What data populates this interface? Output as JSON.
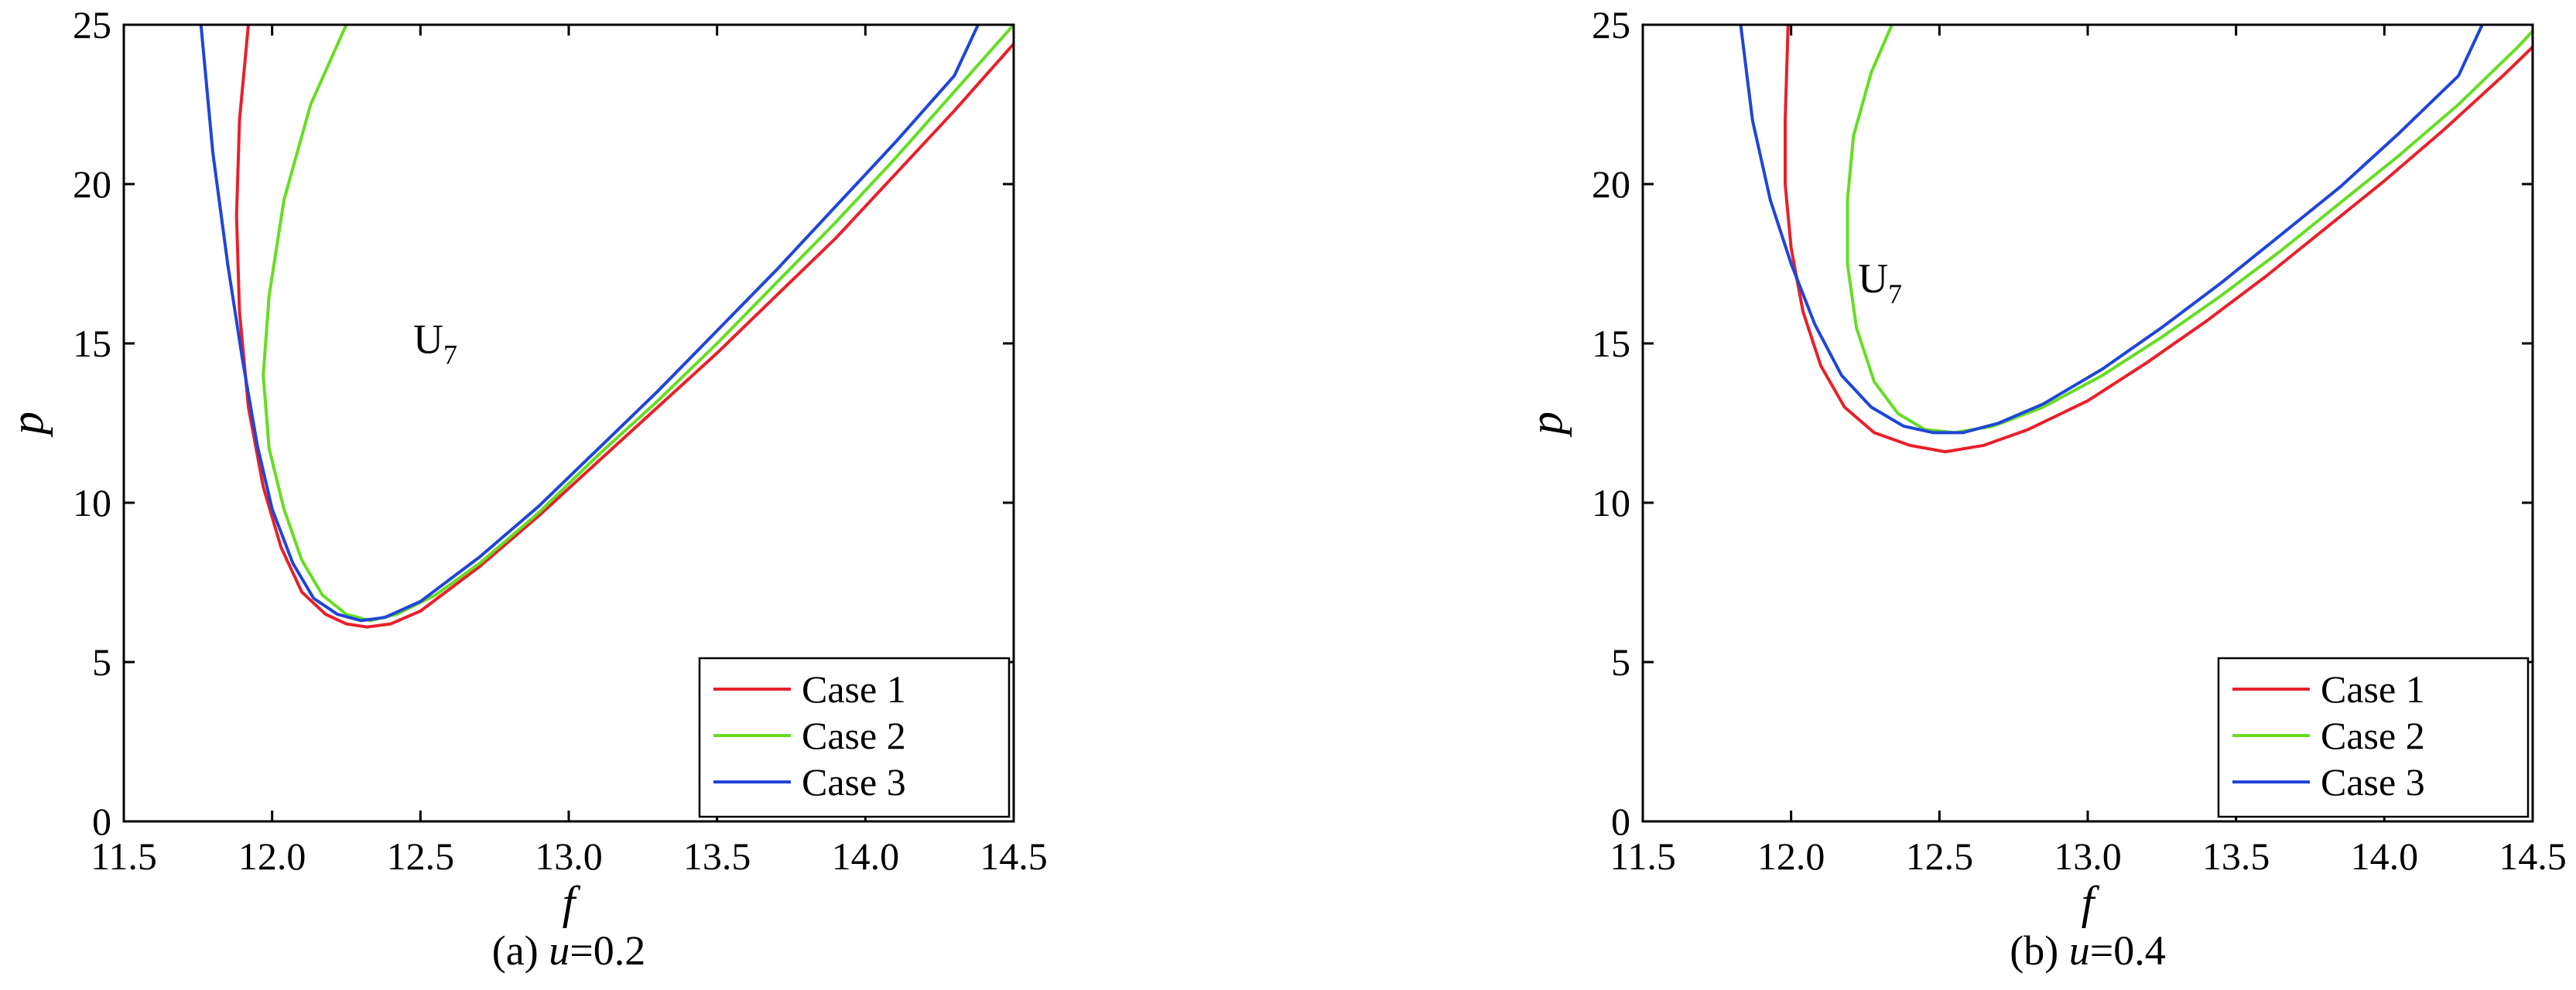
{
  "chart_data": [
    {
      "type": "line",
      "caption_prefix": "(a) ",
      "caption_var": "u",
      "caption_value": "=0.2",
      "xlabel": "f",
      "ylabel": "p",
      "xlim": [
        11.5,
        14.5
      ],
      "ylim": [
        0,
        25
      ],
      "xticks": [
        11.5,
        12.0,
        12.5,
        13.0,
        13.5,
        14.0,
        14.5
      ],
      "xtick_labels": [
        "11.5",
        "12.0",
        "12.5",
        "13.0",
        "13.5",
        "14.0",
        "14.5"
      ],
      "yticks": [
        0,
        5,
        10,
        15,
        20,
        25
      ],
      "ytick_labels": [
        "0",
        "5",
        "10",
        "15",
        "20",
        "25"
      ],
      "annotation": {
        "text": "U",
        "sub": "7",
        "f": 12.55,
        "p": 14.7
      },
      "legend_position": "bottom-right",
      "series": [
        {
          "name": "Case 1",
          "color": "#e8202a",
          "points": [
            [
              11.92,
              25
            ],
            [
              11.89,
              22
            ],
            [
              11.88,
              19
            ],
            [
              11.89,
              16
            ],
            [
              11.92,
              13
            ],
            [
              11.97,
              10.5
            ],
            [
              12.03,
              8.6
            ],
            [
              12.1,
              7.2
            ],
            [
              12.18,
              6.5
            ],
            [
              12.25,
              6.2
            ],
            [
              12.32,
              6.1
            ],
            [
              12.4,
              6.2
            ],
            [
              12.5,
              6.6
            ],
            [
              12.7,
              8.0
            ],
            [
              12.9,
              9.6
            ],
            [
              13.1,
              11.3
            ],
            [
              13.3,
              13.0
            ],
            [
              13.5,
              14.7
            ],
            [
              13.7,
              16.5
            ],
            [
              13.9,
              18.3
            ],
            [
              14.1,
              20.3
            ],
            [
              14.3,
              22.3
            ],
            [
              14.5,
              24.4
            ]
          ]
        },
        {
          "name": "Case 2",
          "color": "#66dd22",
          "points": [
            [
              12.25,
              25
            ],
            [
              12.13,
              22.5
            ],
            [
              12.04,
              19.5
            ],
            [
              11.99,
              16.5
            ],
            [
              11.97,
              14
            ],
            [
              11.99,
              11.7
            ],
            [
              12.04,
              9.8
            ],
            [
              12.1,
              8.2
            ],
            [
              12.17,
              7.1
            ],
            [
              12.25,
              6.5
            ],
            [
              12.33,
              6.3
            ],
            [
              12.42,
              6.5
            ],
            [
              12.55,
              7.1
            ],
            [
              12.7,
              8.1
            ],
            [
              12.9,
              9.7
            ],
            [
              13.1,
              11.5
            ],
            [
              13.3,
              13.2
            ],
            [
              13.5,
              15.0
            ],
            [
              13.7,
              16.9
            ],
            [
              13.9,
              18.8
            ],
            [
              14.1,
              20.8
            ],
            [
              14.3,
              22.9
            ],
            [
              14.5,
              25
            ]
          ]
        },
        {
          "name": "Case 3",
          "color": "#1f45d8",
          "points": [
            [
              11.76,
              25
            ],
            [
              11.8,
              21
            ],
            [
              11.85,
              17.5
            ],
            [
              11.9,
              14.5
            ],
            [
              11.95,
              11.8
            ],
            [
              12.0,
              9.8
            ],
            [
              12.07,
              8.1
            ],
            [
              12.14,
              7.0
            ],
            [
              12.22,
              6.5
            ],
            [
              12.3,
              6.3
            ],
            [
              12.38,
              6.4
            ],
            [
              12.5,
              6.9
            ],
            [
              12.7,
              8.3
            ],
            [
              12.9,
              9.9
            ],
            [
              13.1,
              11.7
            ],
            [
              13.3,
              13.5
            ],
            [
              13.5,
              15.4
            ],
            [
              13.7,
              17.3
            ],
            [
              13.9,
              19.3
            ],
            [
              14.1,
              21.3
            ],
            [
              14.3,
              23.4
            ],
            [
              14.38,
              25
            ]
          ]
        }
      ]
    },
    {
      "type": "line",
      "caption_prefix": "(b) ",
      "caption_var": "u",
      "caption_value": "=0.4",
      "xlabel": "f",
      "ylabel": "p",
      "xlim": [
        11.5,
        14.5
      ],
      "ylim": [
        0,
        25
      ],
      "xticks": [
        11.5,
        12.0,
        12.5,
        13.0,
        13.5,
        14.0,
        14.5
      ],
      "xtick_labels": [
        "11.5",
        "12.0",
        "12.5",
        "13.0",
        "13.5",
        "14.0",
        "14.5"
      ],
      "yticks": [
        0,
        5,
        10,
        15,
        20,
        25
      ],
      "ytick_labels": [
        "0",
        "5",
        "10",
        "15",
        "20",
        "25"
      ],
      "annotation": {
        "text": "U",
        "sub": "7",
        "f": 12.3,
        "p": 16.6
      },
      "legend_position": "bottom-right",
      "series": [
        {
          "name": "Case 1",
          "color": "#e8202a",
          "points": [
            [
              11.99,
              25
            ],
            [
              11.98,
              22
            ],
            [
              11.98,
              20
            ],
            [
              12.0,
              18
            ],
            [
              12.04,
              16
            ],
            [
              12.1,
              14.3
            ],
            [
              12.18,
              13.0
            ],
            [
              12.28,
              12.2
            ],
            [
              12.4,
              11.8
            ],
            [
              12.52,
              11.6
            ],
            [
              12.65,
              11.8
            ],
            [
              12.8,
              12.3
            ],
            [
              13.0,
              13.2
            ],
            [
              13.2,
              14.4
            ],
            [
              13.4,
              15.7
            ],
            [
              13.6,
              17.1
            ],
            [
              13.8,
              18.6
            ],
            [
              14.0,
              20.1
            ],
            [
              14.2,
              21.7
            ],
            [
              14.4,
              23.4
            ],
            [
              14.5,
              24.3
            ]
          ]
        },
        {
          "name": "Case 2",
          "color": "#66dd22",
          "points": [
            [
              12.34,
              25
            ],
            [
              12.27,
              23.5
            ],
            [
              12.21,
              21.5
            ],
            [
              12.19,
              19.5
            ],
            [
              12.19,
              17.5
            ],
            [
              12.22,
              15.5
            ],
            [
              12.28,
              13.8
            ],
            [
              12.36,
              12.8
            ],
            [
              12.45,
              12.3
            ],
            [
              12.55,
              12.2
            ],
            [
              12.68,
              12.4
            ],
            [
              12.85,
              13.0
            ],
            [
              13.05,
              14.0
            ],
            [
              13.25,
              15.2
            ],
            [
              13.45,
              16.5
            ],
            [
              13.65,
              17.9
            ],
            [
              13.85,
              19.4
            ],
            [
              14.05,
              20.9
            ],
            [
              14.25,
              22.5
            ],
            [
              14.45,
              24.3
            ],
            [
              14.5,
              24.8
            ]
          ]
        },
        {
          "name": "Case 3",
          "color": "#1f45d8",
          "points": [
            [
              11.83,
              25
            ],
            [
              11.87,
              22
            ],
            [
              11.93,
              19.5
            ],
            [
              12.0,
              17.5
            ],
            [
              12.08,
              15.6
            ],
            [
              12.17,
              14.0
            ],
            [
              12.27,
              13.0
            ],
            [
              12.38,
              12.4
            ],
            [
              12.48,
              12.2
            ],
            [
              12.58,
              12.2
            ],
            [
              12.7,
              12.5
            ],
            [
              12.85,
              13.1
            ],
            [
              13.05,
              14.2
            ],
            [
              13.25,
              15.5
            ],
            [
              13.45,
              16.9
            ],
            [
              13.65,
              18.4
            ],
            [
              13.85,
              19.9
            ],
            [
              14.05,
              21.6
            ],
            [
              14.25,
              23.4
            ],
            [
              14.33,
              25
            ]
          ]
        }
      ]
    }
  ]
}
